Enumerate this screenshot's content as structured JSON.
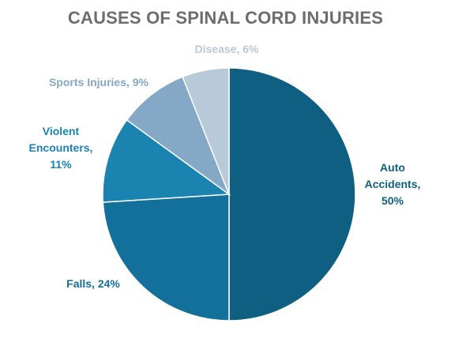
{
  "chart_data": {
    "type": "pie",
    "title": "CAUSES OF SPINAL CORD INJURIES",
    "start_angle_deg": 0,
    "direction": "clockwise",
    "slices": [
      {
        "name": "Auto Accidents",
        "value": 50,
        "color": "#0e5f82",
        "label_lines": [
          "Auto",
          "Accidents,",
          "50%"
        ],
        "label_color": "#0e5f82"
      },
      {
        "name": "Falls",
        "value": 24,
        "color": "#13709a",
        "label_lines": [
          "Falls, 24%"
        ],
        "label_color": "#13709a"
      },
      {
        "name": "Violent Encounters",
        "value": 11,
        "color": "#1a83b0",
        "label_lines": [
          "Violent",
          "Encounters,",
          "11%"
        ],
        "label_color": "#1a83b0"
      },
      {
        "name": "Sports Injuries",
        "value": 9,
        "color": "#84a8c6",
        "label_lines": [
          "Sports Injuries, 9%"
        ],
        "label_color": "#84a8c6"
      },
      {
        "name": "Disease",
        "value": 6,
        "color": "#b8c9da",
        "label_lines": [
          "Disease, 6%"
        ],
        "label_color": "#b8c9da"
      }
    ]
  }
}
